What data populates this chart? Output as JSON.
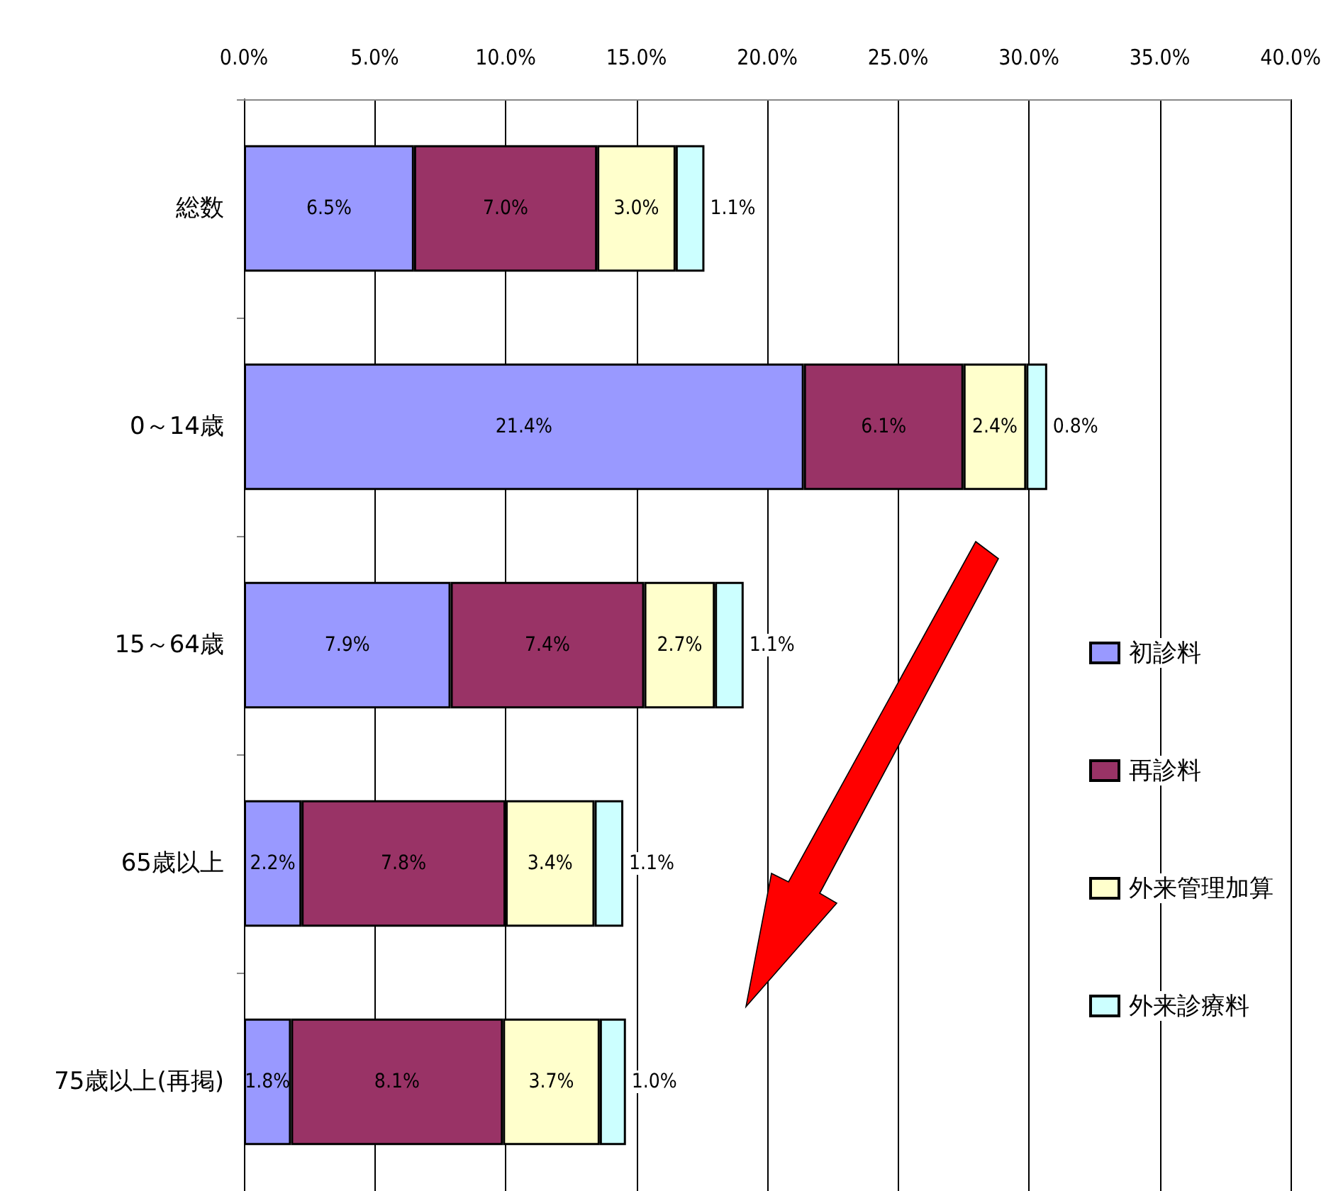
{
  "chart_data": {
    "type": "bar",
    "orientation": "horizontal",
    "stacked": true,
    "categories": [
      "総数",
      "0～14歳",
      "15～64歳",
      "65歳以上",
      "75歳以上(再掲)"
    ],
    "series": [
      {
        "name": "初診料",
        "color": "#9999ff",
        "values": [
          6.5,
          21.4,
          7.9,
          2.2,
          1.8
        ],
        "value_labels": [
          "6.5%",
          "21.4%",
          "7.9%",
          "2.2%",
          "1.8%"
        ]
      },
      {
        "name": "再診料",
        "color": "#993366",
        "values": [
          7.0,
          6.1,
          7.4,
          7.8,
          8.1
        ],
        "value_labels": [
          "7.0%",
          "6.1%",
          "7.4%",
          "7.8%",
          "8.1%"
        ]
      },
      {
        "name": "外来管理加算",
        "color": "#ffffcc",
        "values": [
          3.0,
          2.4,
          2.7,
          3.4,
          3.7
        ],
        "value_labels": [
          "3.0%",
          "2.4%",
          "2.7%",
          "3.4%",
          "3.7%"
        ]
      },
      {
        "name": "外来診療料",
        "color": "#ccffff",
        "values": [
          1.1,
          0.8,
          1.1,
          1.1,
          1.0
        ],
        "value_labels": [
          "1.1%",
          "0.8%",
          "1.1%",
          "1.1%",
          "1.0%"
        ]
      }
    ],
    "xlim": [
      0,
      40
    ],
    "xticks": [
      {
        "value": 0,
        "label": "0.0%"
      },
      {
        "value": 5,
        "label": "5.0%"
      },
      {
        "value": 10,
        "label": "10.0%"
      },
      {
        "value": 15,
        "label": "15.0%"
      },
      {
        "value": 20,
        "label": "20.0%"
      },
      {
        "value": 25,
        "label": "25.0%"
      },
      {
        "value": 30,
        "label": "30.0%"
      },
      {
        "value": 35,
        "label": "35.0%"
      },
      {
        "value": 40,
        "label": "40.0%"
      }
    ],
    "grid": "x",
    "legend": "right"
  }
}
